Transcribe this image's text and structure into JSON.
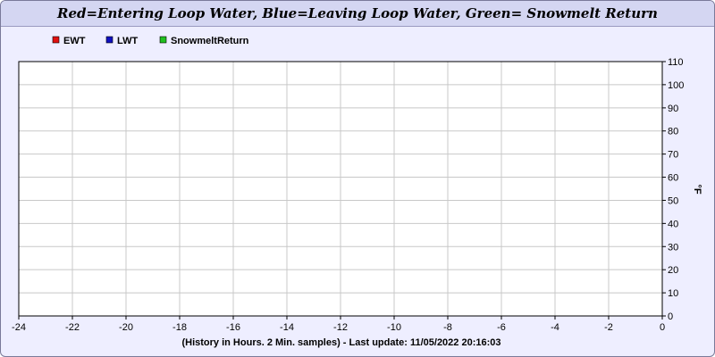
{
  "chart_data": {
    "type": "line",
    "title": "Red=Entering Loop Water, Blue=Leaving Loop Water, Green= Snowmelt Return",
    "xlabel": "(History in Hours. 2 Min. samples) - Last update: 11/05/2022 20:16:03",
    "ylabel": "°F",
    "xlim": [
      -24,
      0
    ],
    "ylim": [
      0,
      110
    ],
    "x_ticks": [
      -24,
      -22,
      -20,
      -18,
      -16,
      -14,
      -12,
      -10,
      -8,
      -6,
      -4,
      -2,
      0
    ],
    "y_ticks": [
      0,
      10,
      20,
      30,
      40,
      50,
      60,
      70,
      80,
      90,
      100,
      110
    ],
    "grid": true,
    "legend_position": "top-left",
    "series": [
      {
        "name": "EWT",
        "color": "#e01010",
        "values": []
      },
      {
        "name": "LWT",
        "color": "#1010c0",
        "values": []
      },
      {
        "name": "SnowmeltReturn",
        "color": "#20c020",
        "values": []
      }
    ]
  }
}
